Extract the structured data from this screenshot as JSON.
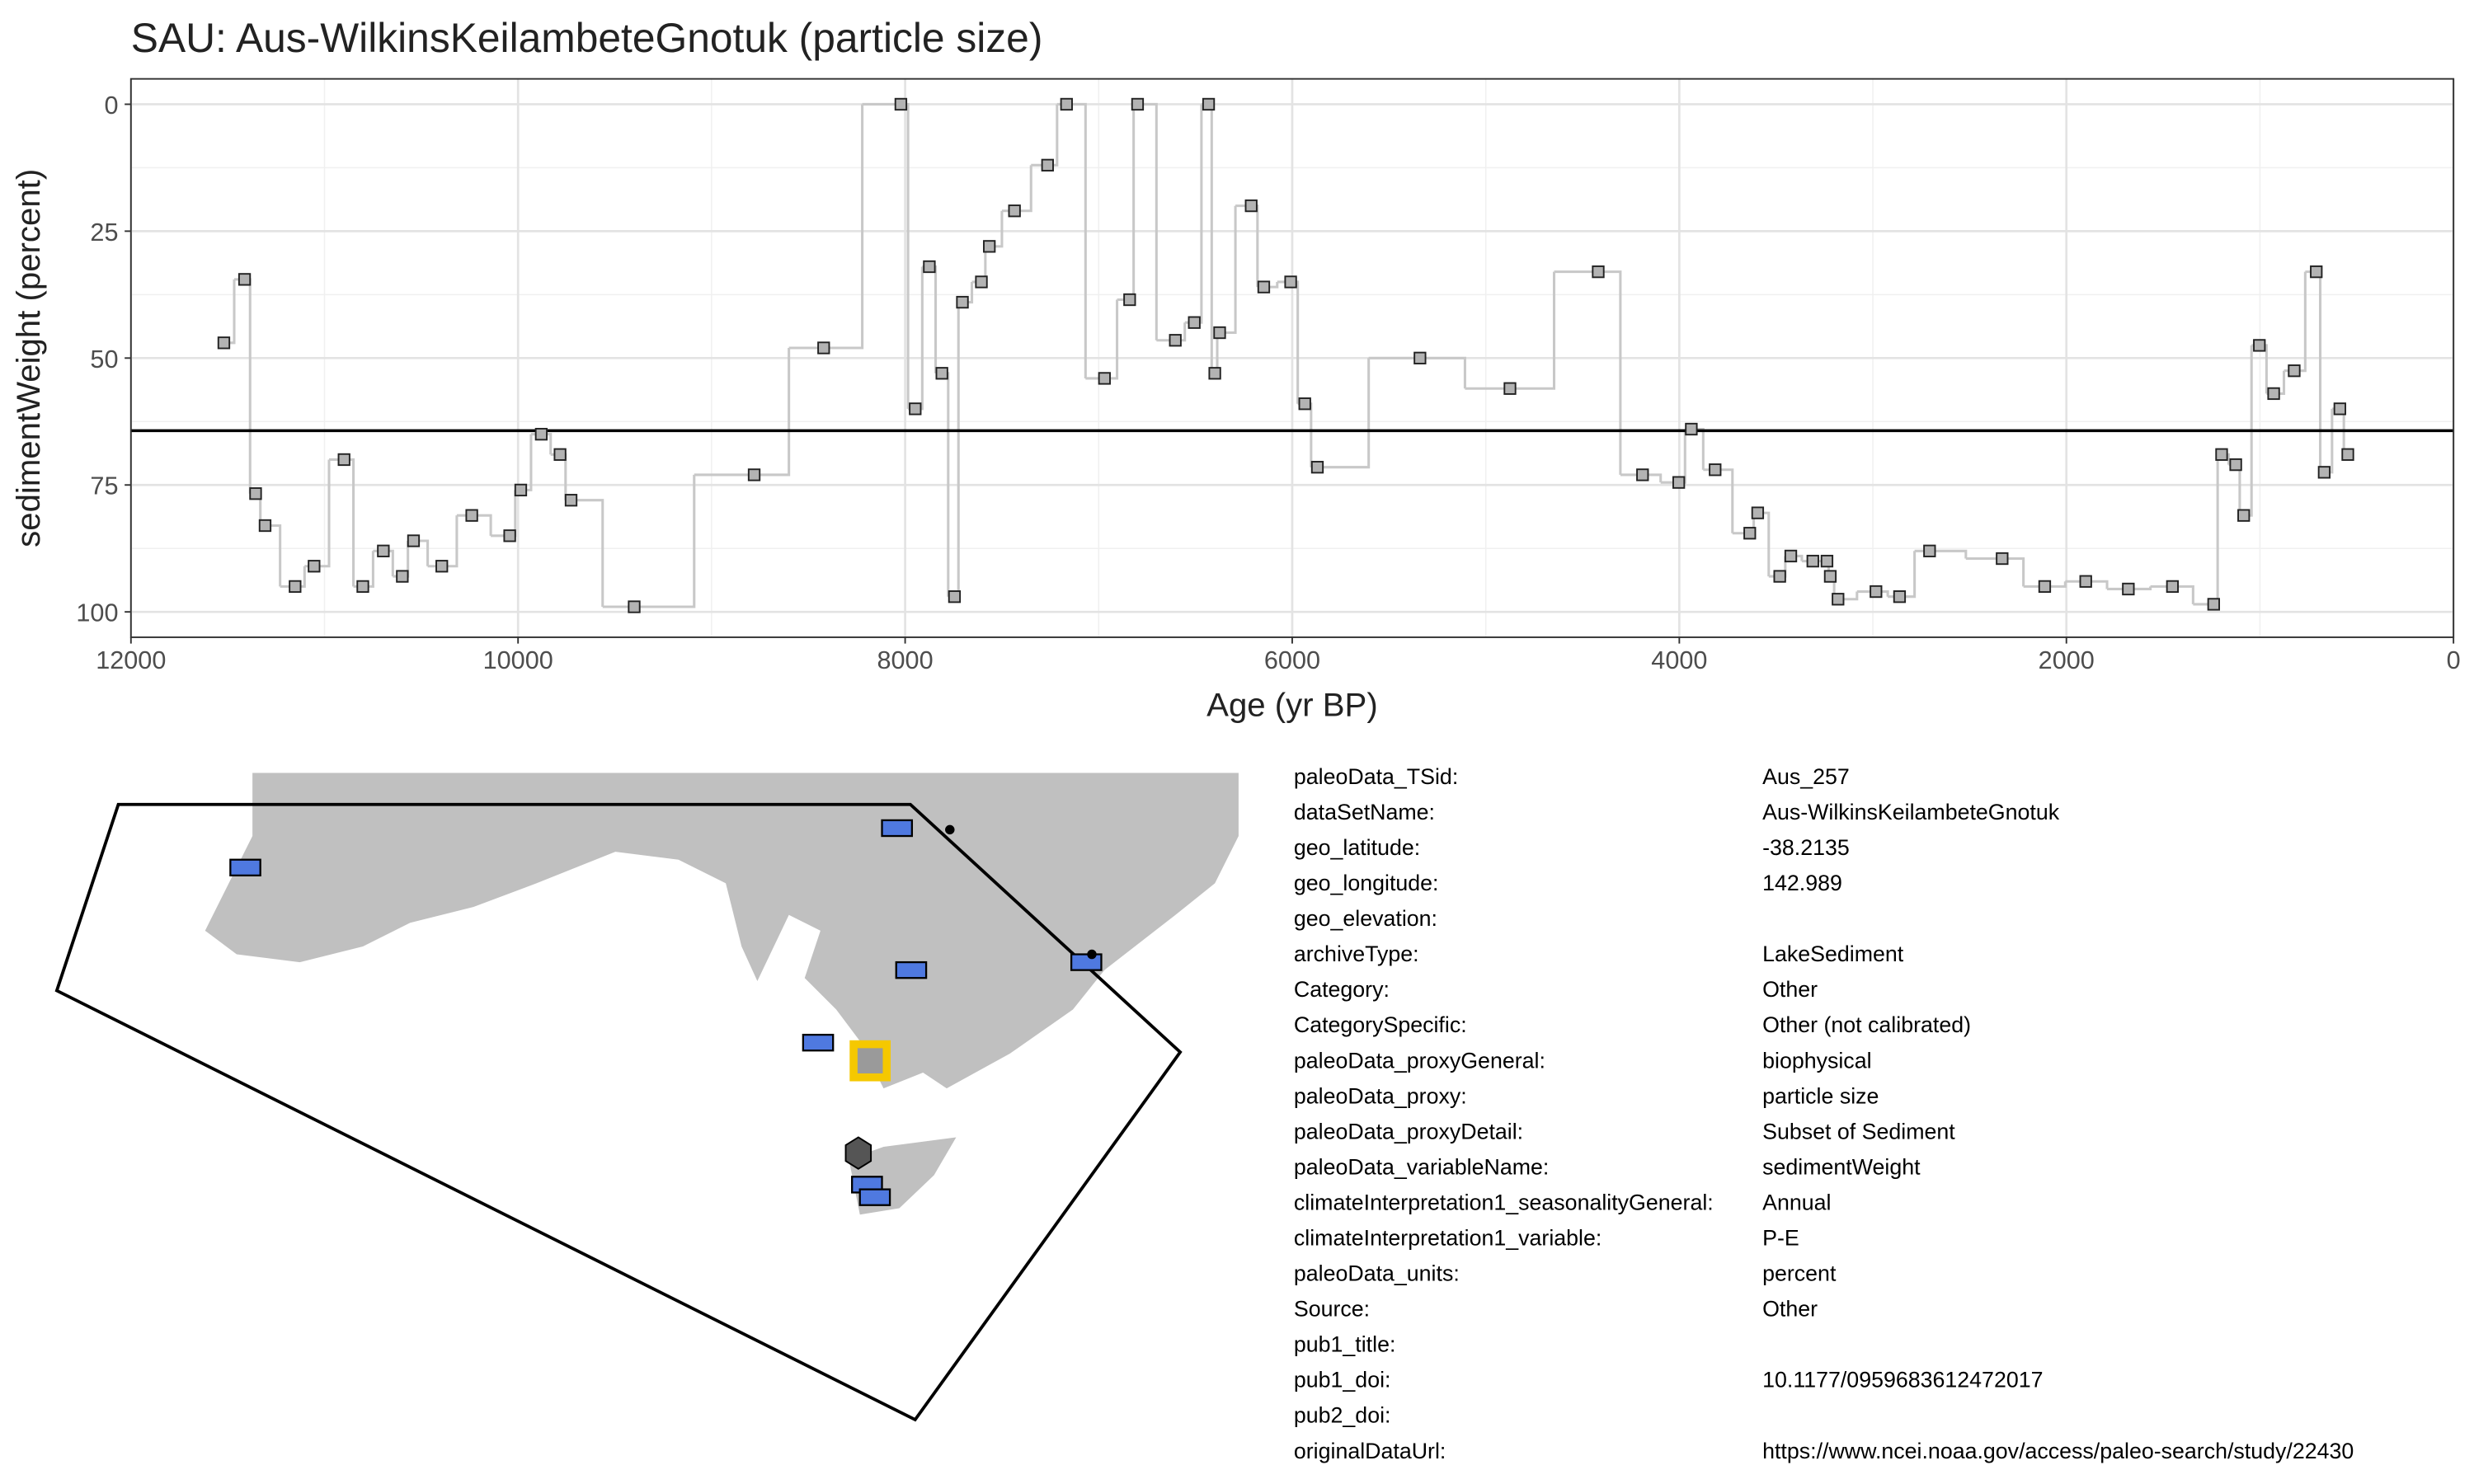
{
  "chart_data": {
    "type": "step",
    "title": "SAU: Aus-WilkinsKeilambeteGnotuk (particle size)",
    "x_label": "Age (yr BP)",
    "y_label": "sedimentWeight (percent)",
    "xlim": [
      12000,
      0
    ],
    "xticks": [
      12000,
      10000,
      8000,
      6000,
      4000,
      2000,
      0
    ],
    "ylim": [
      -5,
      105
    ],
    "y_reversed": true,
    "yticks": [
      0,
      25,
      50,
      75,
      100
    ],
    "grid": true,
    "hline": 64.3,
    "x": [
      11520,
      11413,
      11356,
      11307,
      11152,
      11054,
      10899,
      10802,
      10696,
      10598,
      10540,
      10394,
      10239,
      10043,
      9986,
      9880,
      9783,
      9726,
      9400,
      8780,
      8421,
      8022,
      7948,
      7875,
      7810,
      7745,
      7704,
      7606,
      7565,
      7435,
      7264,
      7166,
      6970,
      6840,
      6799,
      6604,
      6506,
      6432,
      6400,
      6375,
      6212,
      6147,
      6008,
      5935,
      5870,
      5340,
      4875,
      4419,
      4190,
      4003,
      3938,
      3815,
      3636,
      3595,
      3481,
      3424,
      3310,
      3237,
      3220,
      3180,
      2984,
      2862,
      2707,
      2332,
      2112,
      1900,
      1680,
      1452,
      1239,
      1198,
      1125,
      1084,
      1003,
      929,
      823,
      709,
      668,
      587,
      546
    ],
    "series": [
      {
        "name": "sedimentWeight",
        "color": "#c8c8c8",
        "marker_color": "#b3b3b3",
        "values": [
          47,
          34.5,
          76.7,
          83,
          95,
          91,
          70,
          95,
          88,
          93,
          86,
          91,
          81,
          85,
          76,
          65,
          69,
          78,
          99,
          73,
          48,
          0,
          60,
          32,
          53,
          97,
          39,
          35,
          28,
          21,
          12,
          0,
          54,
          38.5,
          0,
          46.5,
          43,
          0,
          53,
          45,
          20,
          36,
          35,
          59,
          71.5,
          50,
          56,
          33,
          73,
          74.5,
          64,
          72,
          84.5,
          80.5,
          93,
          89,
          90,
          90,
          93,
          97.5,
          96,
          97,
          88,
          89.5,
          95,
          94,
          95.5,
          95,
          98.5,
          69,
          71,
          81,
          47.5,
          57,
          52.5,
          33,
          72.5,
          60,
          69
        ]
      }
    ]
  },
  "metadata": {
    "rows": [
      [
        "paleoData_TSid:",
        "Aus_257"
      ],
      [
        "dataSetName:",
        "Aus-WilkinsKeilambeteGnotuk"
      ],
      [
        "geo_latitude:",
        "-38.2135"
      ],
      [
        "geo_longitude:",
        "142.989"
      ],
      [
        "geo_elevation:"
      ],
      [
        "archiveType:",
        "LakeSediment"
      ],
      [
        "Category:",
        "Other"
      ],
      [
        "CategorySpecific:",
        "Other (not calibrated)"
      ],
      [
        "paleoData_proxyGeneral:",
        "biophysical"
      ],
      [
        "paleoData_proxy:",
        "particle size"
      ],
      [
        "paleoData_proxyDetail:",
        "Subset of Sediment"
      ],
      [
        "paleoData_variableName:",
        "sedimentWeight"
      ],
      [
        "climateInterpretation1_seasonalityGeneral:",
        "Annual"
      ],
      [
        "climateInterpretation1_variable:",
        "P-E"
      ],
      [
        "paleoData_units:",
        "percent"
      ],
      [
        "Source:",
        "Other"
      ],
      [
        "pub1_title:"
      ],
      [
        "pub1_doi:",
        "10.1177/0959683612472017"
      ],
      [
        "pub2_doi:"
      ],
      [
        "originalDataUrl:",
        "https://www.ncei.noaa.gov/access/paleo-search/study/22430"
      ]
    ]
  }
}
